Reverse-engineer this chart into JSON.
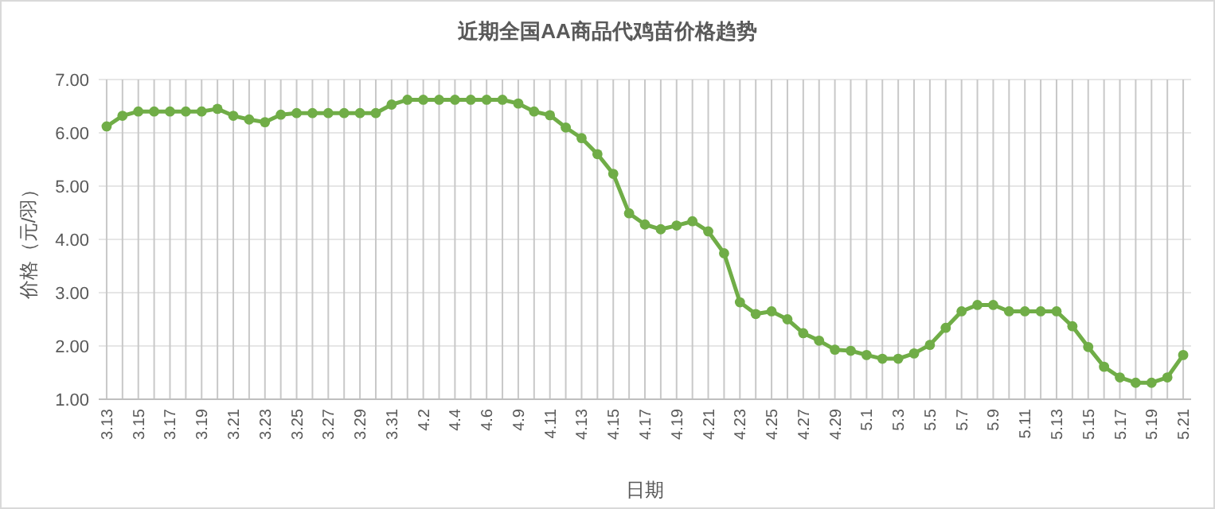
{
  "chart_data": {
    "type": "line",
    "title": "近期全国AA商品代鸡苗价格趋势",
    "xlabel": "日期",
    "ylabel": "价格（元/羽）",
    "categories": [
      "3.13",
      null,
      "3.15",
      null,
      "3.17",
      null,
      "3.19",
      null,
      "3.21",
      null,
      "3.23",
      null,
      "3.25",
      null,
      "3.27",
      null,
      "3.29",
      null,
      "3.31",
      null,
      "4.2",
      null,
      "4.4",
      null,
      "4.6",
      null,
      "4.9",
      null,
      "4.11",
      null,
      "4.13",
      null,
      "4.15",
      null,
      "4.17",
      null,
      "4.19",
      null,
      "4.21",
      null,
      "4.23",
      null,
      "4.25",
      null,
      "4.27",
      null,
      "4.29",
      null,
      "5.1",
      null,
      "5.3",
      null,
      "5.5",
      null,
      "5.7",
      null,
      "5.9",
      null,
      "5.11",
      null,
      "5.13",
      null,
      "5.15",
      null,
      "5.17",
      null,
      "5.19",
      null,
      "5.21"
    ],
    "series": [
      {
        "color": "#70ad47",
        "values": [
          6.12,
          6.32,
          6.4,
          6.4,
          6.4,
          6.4,
          6.4,
          6.45,
          6.32,
          6.25,
          6.2,
          6.34,
          6.37,
          6.37,
          6.37,
          6.37,
          6.37,
          6.37,
          6.53,
          6.62,
          6.62,
          6.62,
          6.62,
          6.62,
          6.62,
          6.62,
          6.55,
          6.4,
          6.33,
          6.1,
          5.9,
          5.6,
          5.23,
          4.49,
          4.28,
          4.19,
          4.26,
          4.34,
          4.15,
          3.74,
          2.82,
          2.6,
          2.65,
          2.5,
          2.24,
          2.1,
          1.93,
          1.91,
          1.83,
          1.76,
          1.76,
          1.86,
          2.02,
          2.34,
          2.65,
          2.77,
          2.77,
          2.65,
          2.65,
          2.65,
          2.65,
          2.37,
          1.98,
          1.61,
          1.41,
          1.31,
          1.31,
          1.41,
          1.83
        ]
      }
    ],
    "ylim": [
      1,
      7
    ],
    "yticks": [
      {
        "value": 1,
        "label": "1.00"
      },
      {
        "value": 2,
        "label": "2.00"
      },
      {
        "value": 3,
        "label": "3.00"
      },
      {
        "value": 4,
        "label": "4.00"
      },
      {
        "value": 5,
        "label": "5.00"
      },
      {
        "value": 6,
        "label": "6.00"
      },
      {
        "value": 7,
        "label": "7.00"
      }
    ],
    "grid": true,
    "marker": "circle",
    "line_style": "solid"
  }
}
